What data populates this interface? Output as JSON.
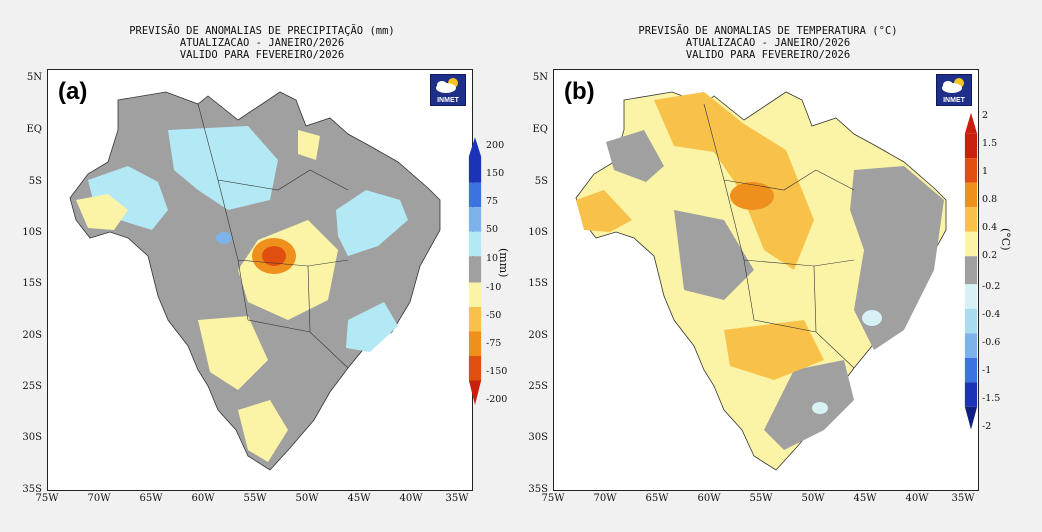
{
  "panels": [
    {
      "label": "(a)",
      "title_lines": [
        "PREVISÃO DE ANOMALIAS DE PRECIPITAÇÃO (mm)",
        "ATUALIZACAO - JANEIRO/2026",
        "VALIDO PARA FEVEREIRO/2026"
      ],
      "unit": "(mm)",
      "logo_text": "INMET",
      "colorbar_labels": [
        "200",
        "150",
        "75",
        "50",
        "10",
        "-10",
        "-50",
        "-75",
        "-150",
        "-200"
      ]
    },
    {
      "label": "(b)",
      "title_lines": [
        "PREVISÃO DE ANOMALIAS DE TEMPERATURA (°C)",
        "ATUALIZACAO - JANEIRO/2026",
        "VALIDO PARA FEVEREIRO/2026"
      ],
      "unit": "(°C)",
      "logo_text": "INMET",
      "colorbar_labels": [
        "2",
        "1.5",
        "1",
        "0.8",
        "0.4",
        "0.2",
        "-0.2",
        "-0.4",
        "-0.6",
        "-1",
        "-1.5",
        "-2"
      ]
    }
  ],
  "axes": {
    "lat_ticks": [
      "5N",
      "EQ",
      "5S",
      "10S",
      "15S",
      "20S",
      "25S",
      "30S",
      "35S"
    ],
    "lon_ticks": [
      "75W",
      "70W",
      "65W",
      "60W",
      "55W",
      "50W",
      "45W",
      "40W",
      "35W"
    ]
  },
  "colors": {
    "precip_scale": [
      "#1a33b8",
      "#3d73e0",
      "#7eb3ea",
      "#b3e8f5",
      "#a0a0a0",
      "#fbf4a6",
      "#f7c14a",
      "#ef8f1c",
      "#e04f10",
      "#c8200c"
    ],
    "temp_scale": [
      "#c8200c",
      "#e04f10",
      "#ef8f1c",
      "#f7c14a",
      "#fbf4a6",
      "#a0a0a0",
      "#d6f2f7",
      "#a9dcee",
      "#7eb3ea",
      "#3d73e0",
      "#1a33b8",
      "#101f80"
    ]
  }
}
